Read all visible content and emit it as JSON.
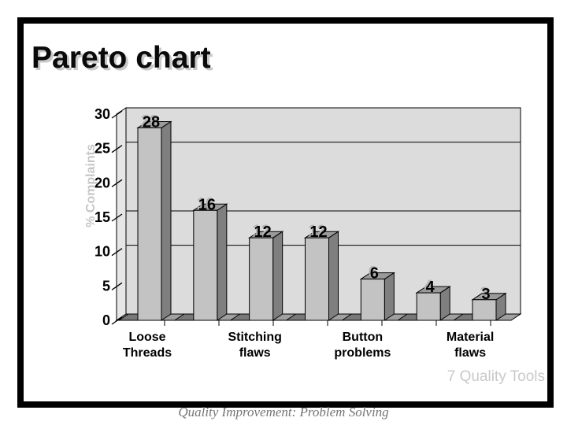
{
  "slide": {
    "title": "Pareto chart",
    "footer_right": "7 Quality Tools",
    "caption": "Quality Improvement: Problem Solving"
  },
  "chart_data": {
    "type": "bar",
    "style": "3d-column",
    "title": "",
    "xlabel": "",
    "ylabel": "% Complaints",
    "ylim": [
      0,
      30
    ],
    "yticks": [
      0,
      5,
      10,
      15,
      20,
      25,
      30
    ],
    "gridlines_at": [
      10,
      15,
      25
    ],
    "grid": true,
    "legend": "none",
    "categories": [
      "Loose Threads",
      "",
      "Stitching flaws",
      "",
      "Button problems",
      "",
      "Material flaws"
    ],
    "values": [
      28,
      16,
      12,
      12,
      6,
      4,
      3
    ],
    "bar_value_labels": [
      "28",
      "16",
      "12",
      "12",
      "6",
      "4",
      "3"
    ],
    "colors": {
      "bar_front": "#c3c3c3",
      "bar_side": "#7f7f7f",
      "bar_top": "#9a9a9a",
      "plot_bg": "#dcdcdc",
      "wall_side": "#e6e6e6",
      "floor": "#a0a0a0",
      "bar_shadow": "#787878",
      "outline": "#000000",
      "ylabel_color": "#c6c6c6",
      "tick_label_color": "#000000"
    }
  }
}
